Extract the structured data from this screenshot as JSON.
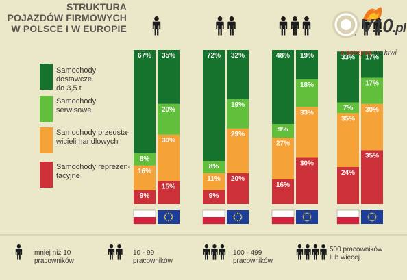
{
  "title_lines": [
    "STRUKTURA",
    "POJAZDÓW FIRMOWYCH",
    "W POLSCE I W EUROPIE"
  ],
  "logo": {
    "main": "V10",
    "suffix": ".pl",
    "tagline_highlight": "z benzyną",
    "tagline_rest": "we krwi"
  },
  "legend": [
    {
      "line1": "Samochody dostawcze",
      "line2": "do 3,5 t"
    },
    {
      "line1": "Samochody",
      "line2": "serwisowe"
    },
    {
      "line1": "Samochody przedsta-",
      "line2": "wicieli handlowych"
    },
    {
      "line1": "Samochody reprezen-",
      "line2": "tacyjne"
    }
  ],
  "colors": {
    "background": "#ebe7c9",
    "dostawcze": "#15732e",
    "serwisowe": "#62bf3b",
    "przedstawicieli": "#f5a339",
    "reprezentacyjne": "#cc3139",
    "icon": "#1b1b1b",
    "eu_flag": "#1d3d9a"
  },
  "footer": [
    {
      "line1": "mniej niż 10",
      "line2": "pracowników",
      "people": 1
    },
    {
      "line1": "10 - 99",
      "line2": "pracowników",
      "people": 2
    },
    {
      "line1": "100 - 499",
      "line2": "pracowników",
      "people": 3
    },
    {
      "line1": "500 pracowników",
      "line2": "lub więcej",
      "people": 4
    }
  ],
  "chart_data": {
    "type": "bar",
    "stacked": true,
    "normalized_percent": true,
    "segment_order": [
      "reprezentacyjne",
      "przedstawicieli",
      "serwisowe",
      "dostawcze"
    ],
    "series_names": {
      "dostawcze": "Samochody dostawcze do 3,5 t",
      "serwisowe": "Samochody serwisowe",
      "przedstawicieli": "Samochody przedstawicieli handlowych",
      "reprezentacyjne": "Samochody reprezentacyjne"
    },
    "groups": [
      {
        "size": "mniej niż 10 pracowników",
        "people": 1,
        "bars": [
          {
            "region": "Polska",
            "flag": "pl",
            "reprezentacyjne": 9,
            "przedstawicieli": 16,
            "serwisowe": 8,
            "dostawcze": 67
          },
          {
            "region": "Europa",
            "flag": "eu",
            "reprezentacyjne": 15,
            "przedstawicieli": 30,
            "serwisowe": 20,
            "dostawcze": 35
          }
        ]
      },
      {
        "size": "10 - 99 pracowników",
        "people": 2,
        "bars": [
          {
            "region": "Polska",
            "flag": "pl",
            "reprezentacyjne": 9,
            "przedstawicieli": 11,
            "serwisowe": 8,
            "dostawcze": 72
          },
          {
            "region": "Europa",
            "flag": "eu",
            "reprezentacyjne": 20,
            "przedstawicieli": 29,
            "serwisowe": 19,
            "dostawcze": 32
          }
        ]
      },
      {
        "size": "100 - 499 pracowników",
        "people": 3,
        "bars": [
          {
            "region": "Polska",
            "flag": "pl",
            "reprezentacyjne": 16,
            "przedstawicieli": 27,
            "serwisowe": 9,
            "dostawcze": 48
          },
          {
            "region": "Europa",
            "flag": "eu",
            "reprezentacyjne": 30,
            "przedstawicieli": 33,
            "serwisowe": 18,
            "dostawcze": 19
          }
        ]
      },
      {
        "size": "500 pracowników lub więcej",
        "people": 4,
        "bars": [
          {
            "region": "Polska",
            "flag": "pl",
            "reprezentacyjne": 24,
            "przedstawicieli": 35,
            "serwisowe": 7,
            "dostawcze": 33
          },
          {
            "region": "Europa",
            "flag": "eu",
            "reprezentacyjne": 35,
            "przedstawicieli": 30,
            "serwisowe": 17,
            "dostawcze": 17
          }
        ]
      }
    ]
  }
}
